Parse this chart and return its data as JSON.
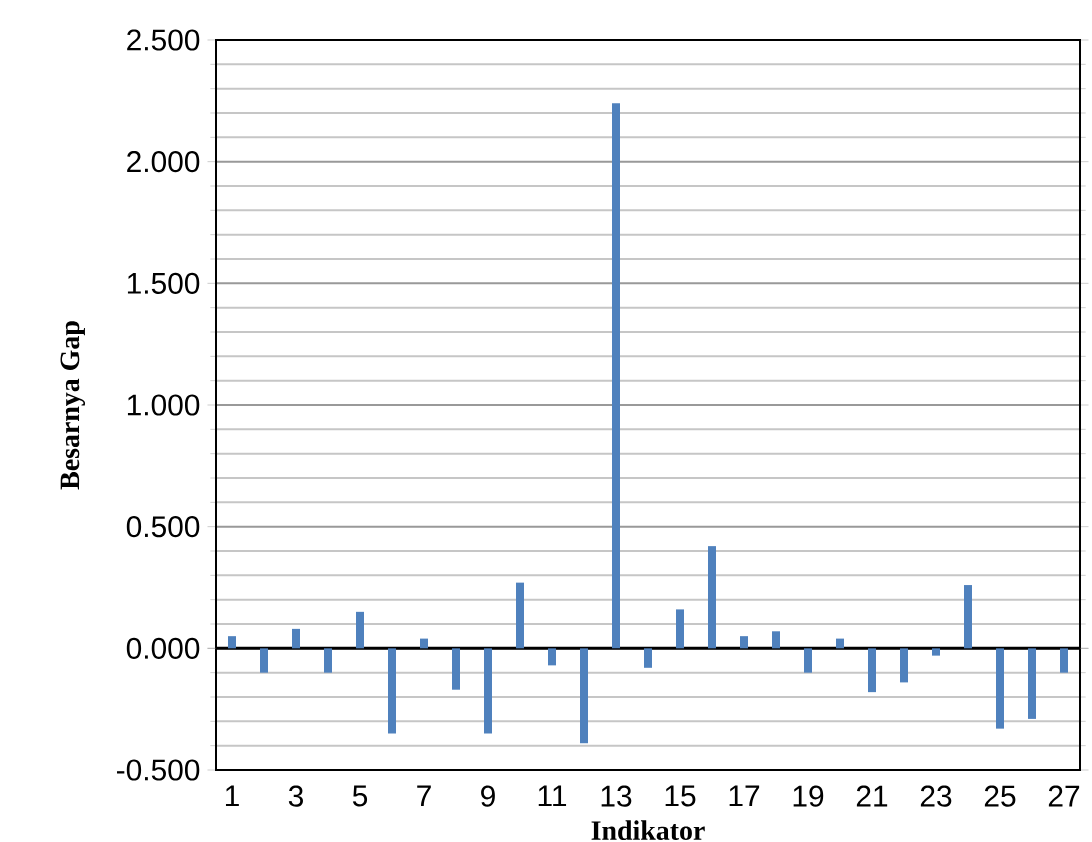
{
  "chart_data": {
    "type": "bar",
    "xlabel": "Indikator",
    "ylabel": "Besarnya Gap",
    "categories": [
      "1",
      null,
      "3",
      null,
      "5",
      null,
      "7",
      null,
      "9",
      null,
      "11",
      null,
      "13",
      null,
      "15",
      null,
      "17",
      null,
      "19",
      null,
      "21",
      null,
      "23",
      null,
      "25",
      null,
      "27"
    ],
    "values": [
      0.05,
      -0.1,
      0.08,
      -0.1,
      0.15,
      -0.35,
      0.04,
      -0.17,
      -0.35,
      0.27,
      -0.07,
      -0.39,
      2.24,
      -0.08,
      0.16,
      0.42,
      0.05,
      0.07,
      -0.1,
      0.04,
      -0.18,
      -0.14,
      -0.03,
      0.26,
      -0.33,
      -0.29,
      -0.1
    ],
    "color": "#4f81bd",
    "ylim": [
      -0.5,
      2.5
    ],
    "yticks": [
      {
        "value": -0.5,
        "label": "-0.500"
      },
      {
        "value": 0,
        "label": "0.000"
      },
      {
        "value": 0.5,
        "label": "0.500"
      },
      {
        "value": 1,
        "label": "1.000"
      },
      {
        "value": 1.5,
        "label": "1.500"
      },
      {
        "value": 2,
        "label": "2.000"
      },
      {
        "value": 2.5,
        "label": "2.500"
      }
    ],
    "grid": "y"
  }
}
